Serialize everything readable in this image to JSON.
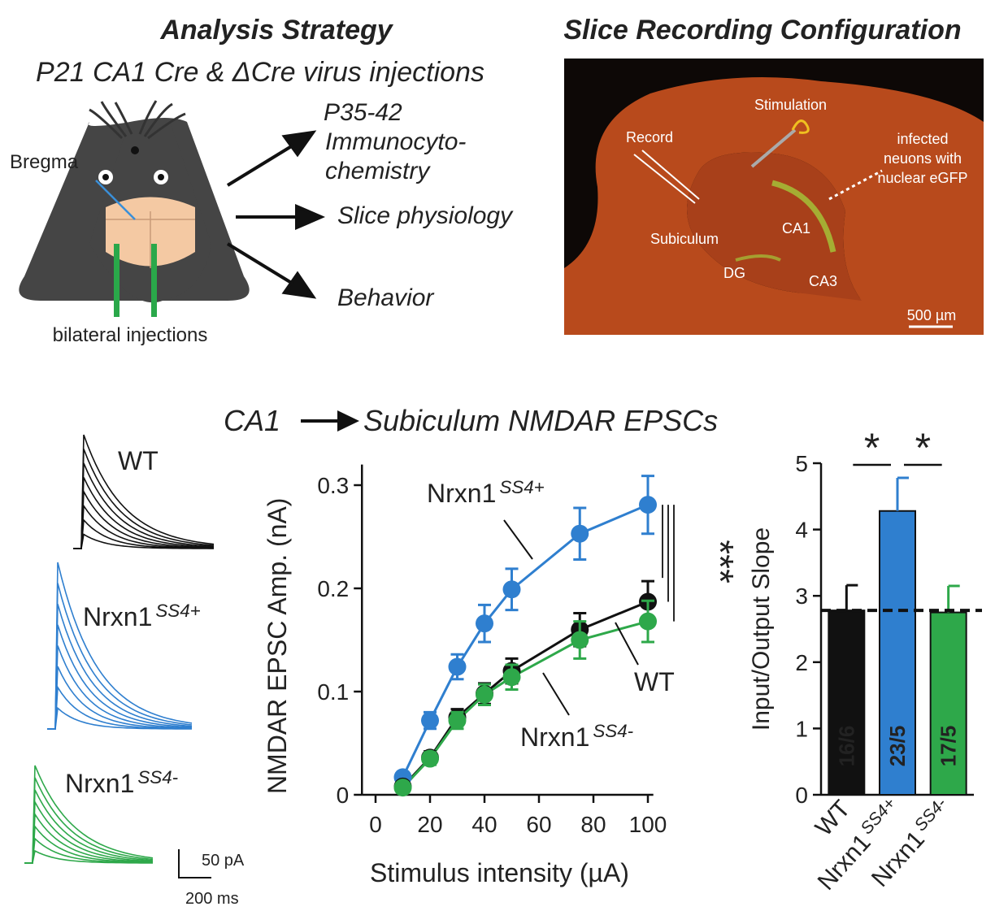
{
  "analysis": {
    "title": "Analysis Strategy",
    "subtitle": "P21 CA1 Cre & ΔCre virus injections",
    "bregma": "Bregma",
    "injections": "bilateral injections",
    "outcomes": [
      [
        "P35-42",
        "Immunocyto-",
        "chemistry"
      ],
      [
        "Slice physiology"
      ],
      [
        "Behavior"
      ]
    ]
  },
  "slice": {
    "title": "Slice Recording Configuration",
    "stimulation": "Stimulation",
    "record": "Record",
    "infected": [
      "infected",
      "neuons with",
      "nuclear eGFP"
    ],
    "subiculum": "Subiculum",
    "ca1": "CA1",
    "dg": "DG",
    "ca3": "CA3",
    "scale": "500 µm"
  },
  "epsc": {
    "title_from": "CA1",
    "title_to": "Subiculum NMDAR EPSCs",
    "traces": [
      {
        "name": "WT",
        "color": "#111111"
      },
      {
        "name": "Nrxn1",
        "superscript": "SS4+",
        "color": "#2f7fcf"
      },
      {
        "name": "Nrxn1",
        "superscript": "SS4-",
        "color": "#2ea84a"
      }
    ],
    "scale": [
      "50 pA",
      "200 ms"
    ]
  },
  "chart_data": [
    {
      "type": "line",
      "xlabel": "Stimulus intensity (µA)",
      "ylabel": "NMDAR EPSC Amp. (nA)",
      "x": [
        10,
        20,
        30,
        40,
        50,
        75,
        100
      ],
      "series": [
        {
          "name": "Nrxn1",
          "superscript": "SS4+",
          "color": "#2f7fcf",
          "values": [
            0.017,
            0.072,
            0.124,
            0.166,
            0.199,
            0.253,
            0.281
          ],
          "errors": [
            0.005,
            0.008,
            0.012,
            0.018,
            0.02,
            0.025,
            0.028
          ]
        },
        {
          "name": "WT",
          "color": "#111111",
          "values": [
            0.008,
            0.036,
            0.075,
            0.098,
            0.12,
            0.16,
            0.187
          ],
          "errors": [
            0.004,
            0.006,
            0.008,
            0.01,
            0.012,
            0.016,
            0.02
          ]
        },
        {
          "name": "Nrxn1",
          "superscript": "SS4-",
          "color": "#2ea84a",
          "values": [
            0.007,
            0.035,
            0.072,
            0.097,
            0.114,
            0.15,
            0.168
          ],
          "errors": [
            0.004,
            0.006,
            0.008,
            0.01,
            0.012,
            0.018,
            0.02
          ]
        }
      ],
      "xlim": [
        -5,
        102
      ],
      "ylim": [
        0,
        0.32
      ],
      "xticks": [
        0,
        20,
        40,
        60,
        80,
        100
      ],
      "yticks": [
        0,
        0.1,
        0.2,
        0.3
      ],
      "annotation": "***"
    },
    {
      "type": "bar",
      "ylabel": "Input/Output Slope",
      "categories": [
        "WT",
        "Nrxn1",
        "Nrxn1"
      ],
      "category_superscripts": [
        null,
        "SS4+",
        "SS4-"
      ],
      "values": [
        2.78,
        4.28,
        2.75
      ],
      "errors": [
        0.38,
        0.5,
        0.4
      ],
      "colors": [
        "#111111",
        "#2f7fcf",
        "#2ea84a"
      ],
      "n_labels": [
        "16/6",
        "23/5",
        "17/5"
      ],
      "reference_line": 2.78,
      "ylim": [
        0,
        5
      ],
      "yticks": [
        0,
        1,
        2,
        3,
        4,
        5
      ],
      "annotations": [
        "*",
        "*"
      ]
    }
  ]
}
